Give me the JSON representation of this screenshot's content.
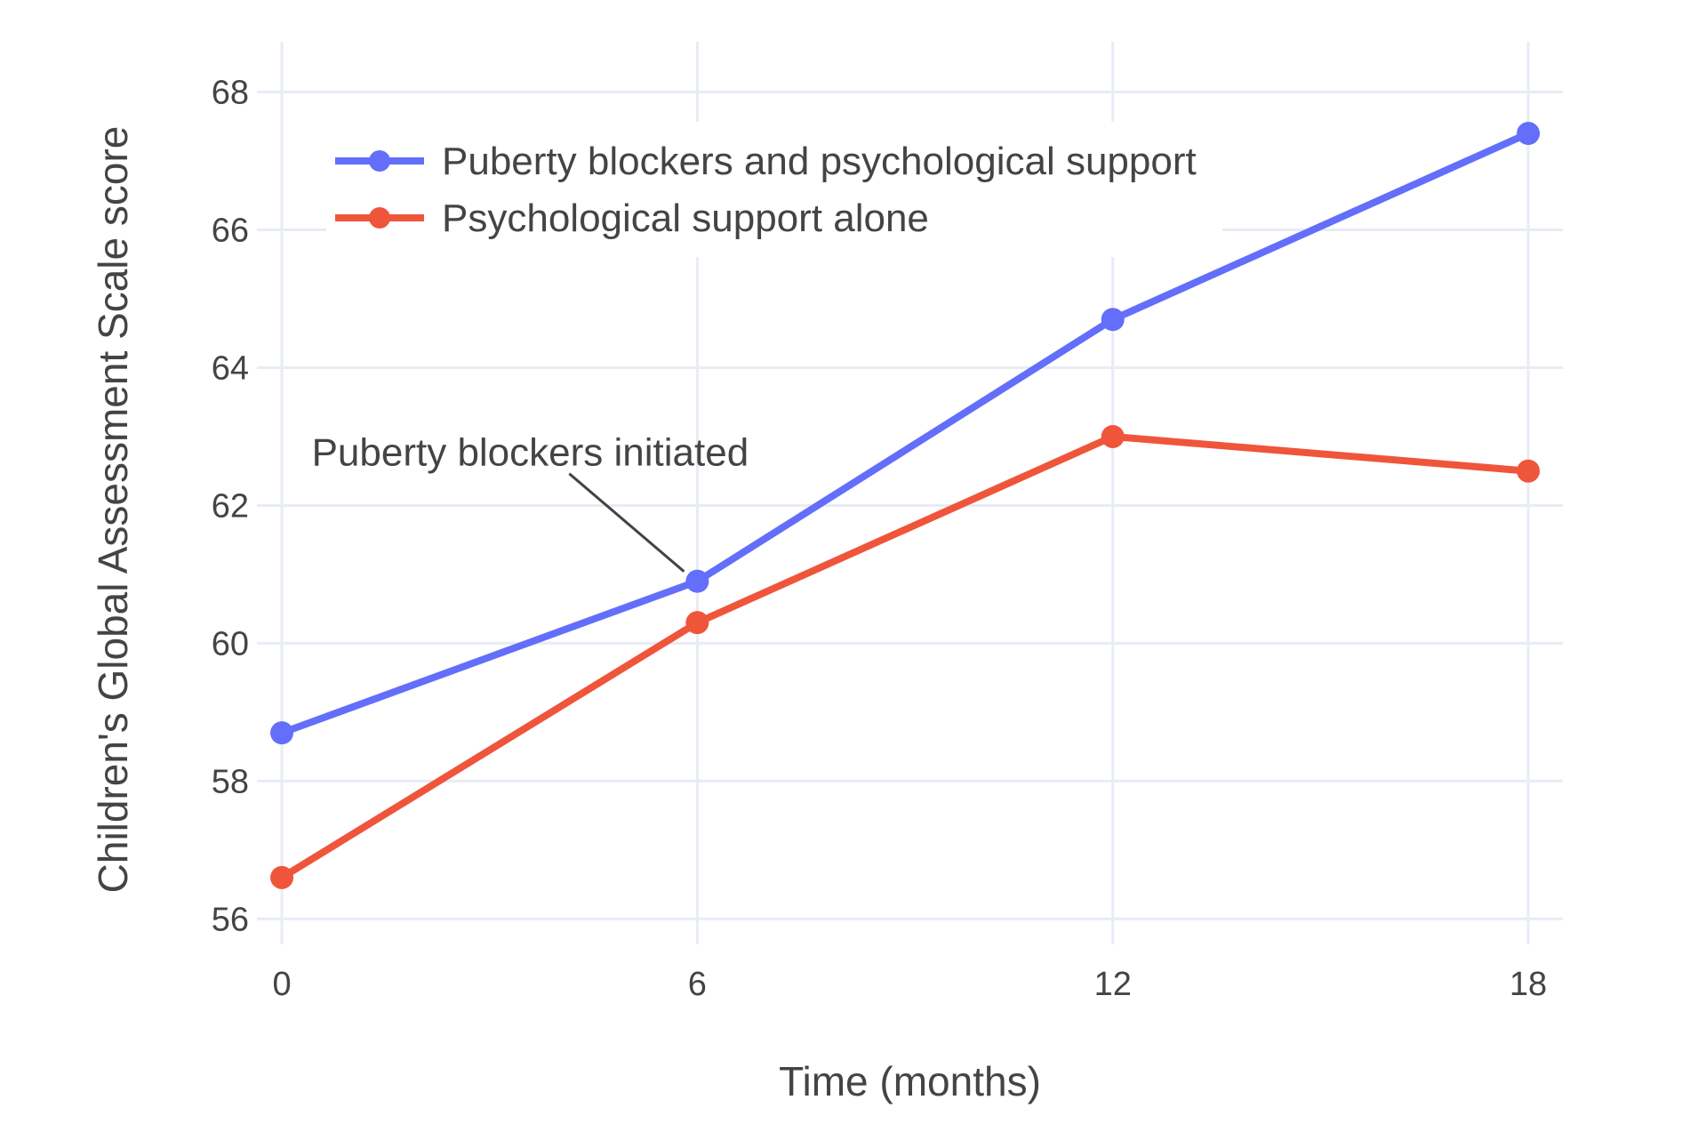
{
  "chart_data": {
    "type": "line",
    "x": [
      0,
      6,
      12,
      18
    ],
    "series": [
      {
        "name": "Puberty blockers and psychological support",
        "values": [
          58.7,
          60.9,
          64.7,
          67.4
        ],
        "color": "#636EFA"
      },
      {
        "name": "Psychological support alone",
        "values": [
          56.6,
          60.3,
          63.0,
          62.5
        ],
        "color": "#EF553B"
      }
    ],
    "title": "",
    "xlabel": "Time (months)",
    "ylabel": "Children's Global Assessment Scale score",
    "xticks": [
      0,
      6,
      12,
      18
    ],
    "yticks": [
      56,
      58,
      60,
      62,
      64,
      66,
      68
    ],
    "xlim": [
      -0.36,
      18.5
    ],
    "ylim": [
      55.63,
      68.73
    ],
    "grid": true,
    "legend_position": "inside-top-left",
    "annotation": {
      "text": "Puberty blockers initiated",
      "target_x": 6,
      "target_y": 60.9
    },
    "colors": {
      "background": "#FFFFFF",
      "grid": "#E7ECF5",
      "text": "#444444",
      "annotation_line": "#444444",
      "legend_background": "#FFFFFF"
    }
  }
}
